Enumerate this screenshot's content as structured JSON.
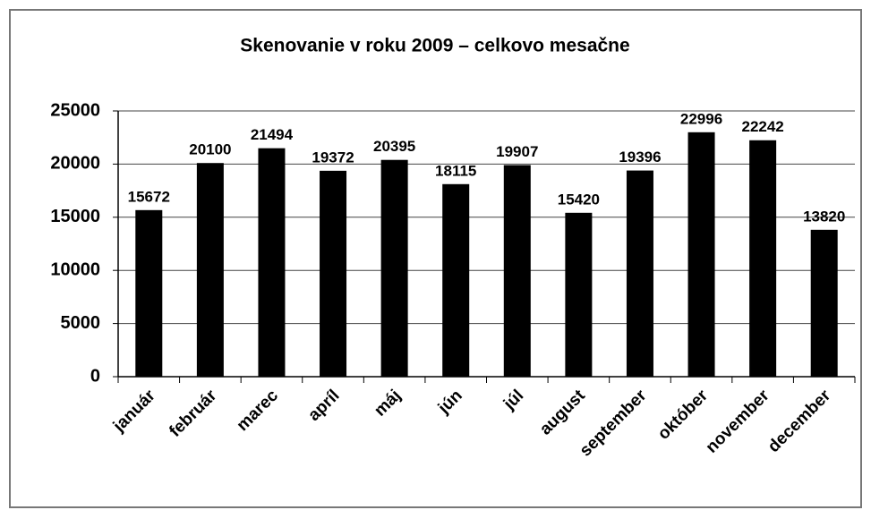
{
  "chart_data": {
    "type": "bar",
    "title": "Skenovanie v roku 2009 – celkovo mesačne",
    "categories": [
      "január",
      "február",
      "marec",
      "apríl",
      "máj",
      "jún",
      "júl",
      "august",
      "september",
      "október",
      "november",
      "december"
    ],
    "values": [
      15672,
      20100,
      21494,
      19372,
      20395,
      18115,
      19907,
      15420,
      19396,
      22996,
      22242,
      13820
    ],
    "color": "#000000",
    "ylim": [
      0,
      25000
    ],
    "yticks": [
      0,
      5000,
      10000,
      15000,
      20000,
      25000
    ],
    "grid": true
  }
}
